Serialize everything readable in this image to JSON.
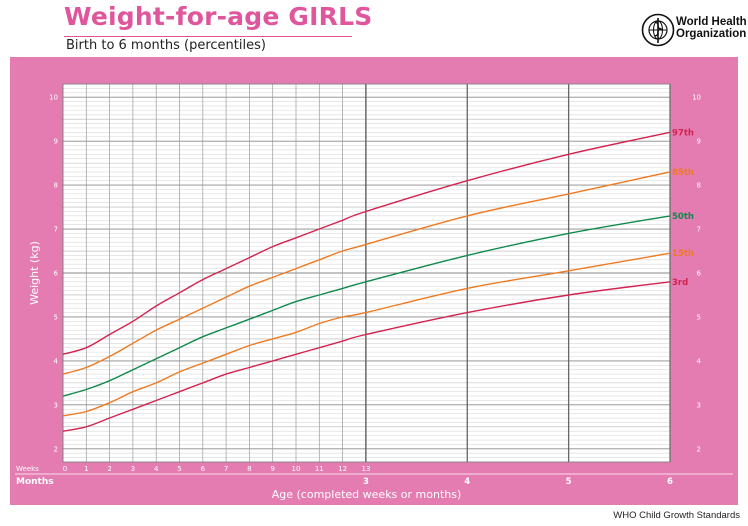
{
  "header": {
    "title": "Weight-for-age GIRLS",
    "subtitle": "Birth to 6 months (percentiles)",
    "org_line1": "World Health",
    "org_line2": "Organization",
    "logo_icon": "who-emblem-icon"
  },
  "footer": {
    "source": "WHO Child Growth Standards"
  },
  "colors": {
    "brand_pink": "#e0569c",
    "panel_pink": "#e47cb2",
    "p3": "#d3234f",
    "p15": "#ee7a21",
    "p50": "#0f8a4c",
    "p85": "#ee7a21",
    "p97": "#d3234f"
  },
  "chart_data": {
    "type": "line",
    "title": "Weight-for-age GIRLS",
    "subtitle": "Birth to 6 months (percentiles)",
    "xlabel": "Age (completed weeks or months)",
    "ylabel": "Weight (kg)",
    "xlim_months": [
      0,
      6
    ],
    "ylim": [
      1.7,
      10.3
    ],
    "y_ticks": [
      "2",
      "3",
      "4",
      "5",
      "6",
      "7",
      "8",
      "9",
      "10"
    ],
    "week_row_label": "Weeks",
    "month_row_label": "Months",
    "week_ticks": [
      "0",
      "1",
      "2",
      "3",
      "4",
      "5",
      "6",
      "7",
      "8",
      "9",
      "10",
      "11",
      "12",
      "13"
    ],
    "month_ticks": [
      "3",
      "4",
      "5",
      "6"
    ],
    "grid": true,
    "x_weeks": [
      0,
      1,
      2,
      3,
      4,
      5,
      6,
      7,
      8,
      9,
      10,
      11,
      12,
      13
    ],
    "x_months": [
      3,
      4,
      5,
      6
    ],
    "series": [
      {
        "name": "3rd",
        "color": "#d3234f",
        "weeks_values": [
          2.4,
          2.5,
          2.7,
          2.9,
          3.1,
          3.3,
          3.5,
          3.7,
          3.85,
          4.0,
          4.15,
          4.3,
          4.45,
          4.6
        ],
        "months_values": [
          4.6,
          5.1,
          5.5,
          5.8
        ]
      },
      {
        "name": "15th",
        "color": "#ee7a21",
        "weeks_values": [
          2.75,
          2.85,
          3.05,
          3.3,
          3.5,
          3.75,
          3.95,
          4.15,
          4.35,
          4.5,
          4.65,
          4.85,
          5.0,
          5.1
        ],
        "months_values": [
          5.1,
          5.65,
          6.05,
          6.45
        ]
      },
      {
        "name": "50th",
        "color": "#0f8a4c",
        "weeks_values": [
          3.2,
          3.35,
          3.55,
          3.8,
          4.05,
          4.3,
          4.55,
          4.75,
          4.95,
          5.15,
          5.35,
          5.5,
          5.65,
          5.8
        ],
        "months_values": [
          5.8,
          6.4,
          6.9,
          7.3
        ]
      },
      {
        "name": "85th",
        "color": "#ee7a21",
        "weeks_values": [
          3.7,
          3.85,
          4.1,
          4.4,
          4.7,
          4.95,
          5.2,
          5.45,
          5.7,
          5.9,
          6.1,
          6.3,
          6.5,
          6.65
        ],
        "months_values": [
          6.65,
          7.3,
          7.8,
          8.3
        ]
      },
      {
        "name": "97th",
        "color": "#d3234f",
        "weeks_values": [
          4.15,
          4.3,
          4.6,
          4.9,
          5.25,
          5.55,
          5.85,
          6.1,
          6.35,
          6.6,
          6.8,
          7.0,
          7.2,
          7.4
        ],
        "months_values": [
          7.4,
          8.1,
          8.7,
          9.2
        ]
      }
    ]
  }
}
